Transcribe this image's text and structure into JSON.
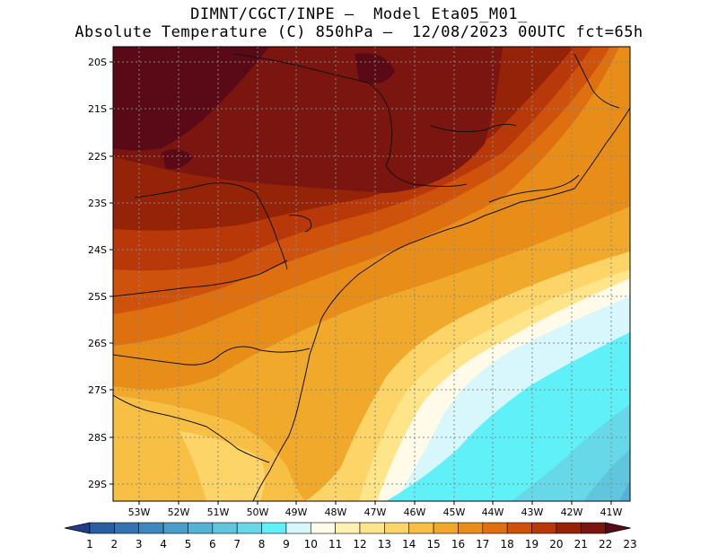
{
  "header": {
    "line1": "DIMNT/CGCT/INPE —  Model Eta05_M01_",
    "line2": "Absolute Temperature (C) 850hPa —  12/08/2023 00UTC fct=65h"
  },
  "axes": {
    "lat_labels": [
      "20S",
      "21S",
      "22S",
      "23S",
      "24S",
      "25S",
      "26S",
      "27S",
      "28S",
      "29S"
    ],
    "lon_labels": [
      "53W",
      "52W",
      "51W",
      "50W",
      "49W",
      "48W",
      "47W",
      "46W",
      "45W",
      "44W",
      "43W",
      "42W",
      "41W"
    ]
  },
  "colorbar": {
    "labels": [
      "1",
      "2",
      "3",
      "4",
      "5",
      "6",
      "7",
      "8",
      "9",
      "10",
      "11",
      "12",
      "13",
      "14",
      "15",
      "16",
      "17",
      "18",
      "19",
      "20",
      "21",
      "22",
      "23"
    ],
    "colors": [
      "#1f3d8c",
      "#2a5ea3",
      "#3573b0",
      "#3f88bd",
      "#4a9dc9",
      "#55b2d4",
      "#5fc6de",
      "#67d8e8",
      "#5ff0f8",
      "#d7f7fd",
      "#fffbe8",
      "#fff2b0",
      "#ffe58a",
      "#fdd468",
      "#f8bf45",
      "#f0a92a",
      "#e88e18",
      "#df7010",
      "#cf520c",
      "#b8380a",
      "#952308",
      "#7a1510",
      "#5a0a16"
    ]
  },
  "map": {
    "region": "South/Southeast Brazil",
    "variable": "Absolute Temperature (C) 850hPa"
  }
}
